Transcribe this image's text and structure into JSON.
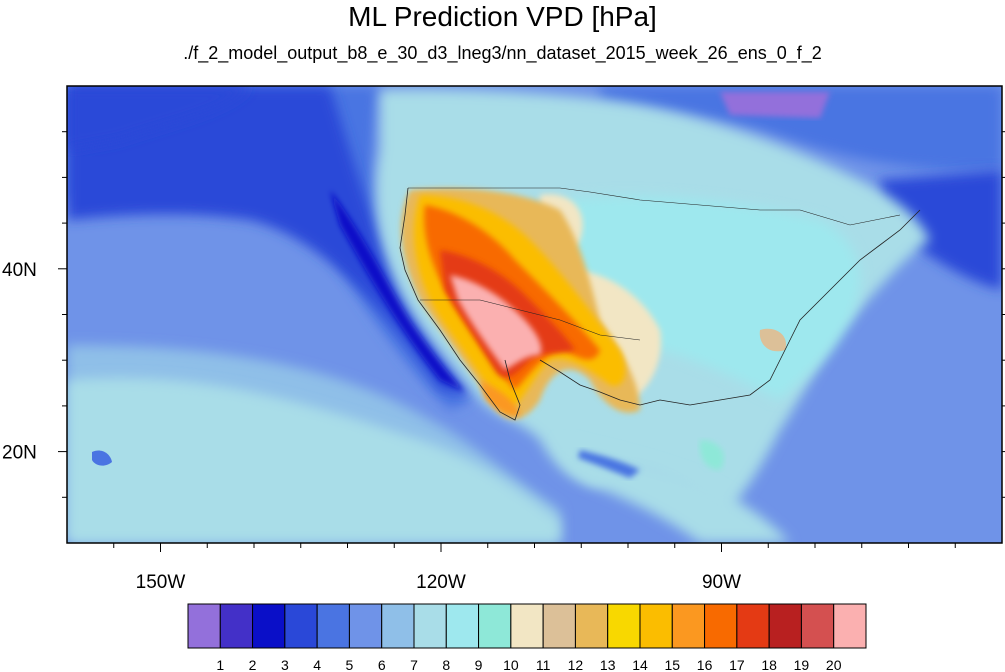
{
  "title": "ML Prediction VPD [hPa]",
  "subtitle": "./f_2_model_output_b8_e_30_d3_lneg3/nn_dataset_2015_week_26_ens_0_f_2",
  "axes": {
    "lat_labels": [
      "40N",
      "20N"
    ],
    "lon_labels": [
      "150W",
      "120W",
      "90W"
    ]
  },
  "colorbar": {
    "labels": [
      "1",
      "2",
      "3",
      "4",
      "5",
      "6",
      "7",
      "8",
      "9",
      "10",
      "11",
      "12",
      "13",
      "14",
      "15",
      "16",
      "17",
      "18",
      "19",
      "20"
    ],
    "colors": [
      "#9370db",
      "#4330c8",
      "#0a0fc8",
      "#2a48d8",
      "#4a74e2",
      "#6f93e8",
      "#8fbfe8",
      "#a9dde8",
      "#9ee8ee",
      "#8ee8d8",
      "#f2e6c4",
      "#dcc098",
      "#e8b858",
      "#f8d800",
      "#fbbd00",
      "#fb9820",
      "#f86a00",
      "#e43a14",
      "#b82020",
      "#d45050",
      "#fbb0b0"
    ]
  },
  "chart_data": {
    "type": "heatmap",
    "title": "ML Prediction VPD [hPa]",
    "subtitle": "./f_2_model_output_b8_e_30_d3_lneg3/nn_dataset_2015_week_26_ens_0_f_2",
    "variable": "VPD",
    "units": "hPa",
    "lon_range": [
      -160,
      -60
    ],
    "lat_range": [
      10,
      60
    ],
    "lon_ticks": [
      -150,
      -120,
      -90
    ],
    "lat_ticks": [
      40,
      20
    ],
    "colorbar_levels": [
      1,
      2,
      3,
      4,
      5,
      6,
      7,
      8,
      9,
      10,
      11,
      12,
      13,
      14,
      15,
      16,
      17,
      18,
      19,
      20
    ]
  }
}
